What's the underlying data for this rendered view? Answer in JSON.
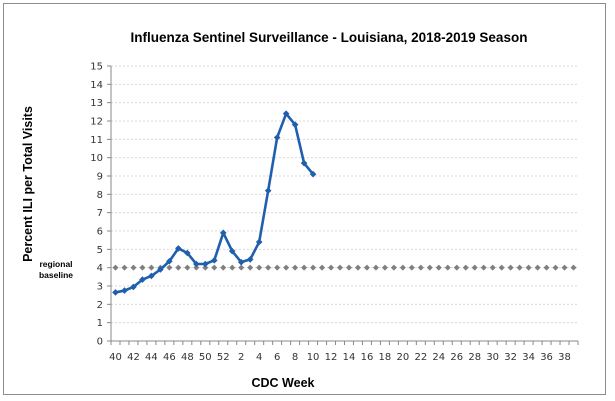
{
  "chart_data": {
    "type": "line",
    "title": "Influenza Sentinel Surveillance - Louisiana, 2018-2019 Season",
    "xlabel": "CDC Week",
    "ylabel": "Percent ILI per Total Visits",
    "ylim": [
      0,
      15
    ],
    "y_ticks": [
      "0",
      "1",
      "2",
      "3",
      "4",
      "5",
      "6",
      "7",
      "8",
      "9",
      "10",
      "11",
      "12",
      "13",
      "14",
      "15"
    ],
    "x_categories": [
      "40",
      "41",
      "42",
      "43",
      "44",
      "45",
      "46",
      "47",
      "48",
      "49",
      "50",
      "51",
      "52",
      "1",
      "2",
      "3",
      "4",
      "5",
      "6",
      "7",
      "8",
      "9",
      "10",
      "11",
      "12",
      "13",
      "14",
      "15",
      "16",
      "17",
      "18",
      "19",
      "20",
      "21",
      "22",
      "23",
      "24",
      "25",
      "26",
      "27",
      "28",
      "29",
      "30",
      "31",
      "32",
      "33",
      "34",
      "35",
      "36",
      "37",
      "38",
      "39"
    ],
    "x_tick_labels": [
      "40",
      "42",
      "44",
      "46",
      "48",
      "50",
      "52",
      "2",
      "4",
      "6",
      "8",
      "10",
      "12",
      "14",
      "16",
      "18",
      "20",
      "22",
      "24",
      "26",
      "28",
      "30",
      "32",
      "34",
      "36",
      "38"
    ],
    "grid": true,
    "series": [
      {
        "name": "Percent ILI",
        "color": "#1f5fae",
        "marker": "diamond",
        "values": [
          2.65,
          2.75,
          2.95,
          3.35,
          3.55,
          3.9,
          4.35,
          5.05,
          4.8,
          4.2,
          4.2,
          4.4,
          5.9,
          4.9,
          4.3,
          4.45,
          5.4,
          8.2,
          11.1,
          12.4,
          11.8,
          9.7,
          9.1
        ]
      },
      {
        "name": "regional baseline",
        "color": "#7f7f7f",
        "marker": "diamond",
        "constant": 4.0
      }
    ],
    "annotations": [
      "regional",
      "baseline"
    ]
  }
}
